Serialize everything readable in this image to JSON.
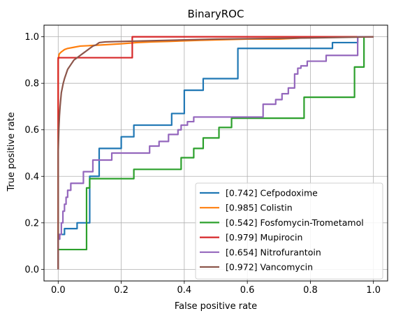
{
  "chart_data": {
    "type": "line",
    "title": "BinaryROC",
    "xlabel": "False positive rate",
    "ylabel": "True positive rate",
    "xlim": [
      -0.045,
      1.045
    ],
    "ylim": [
      -0.05,
      1.05
    ],
    "xticks": [
      0.0,
      0.2,
      0.4,
      0.6,
      0.8,
      1.0
    ],
    "yticks": [
      0.0,
      0.2,
      0.4,
      0.6,
      0.8,
      1.0
    ],
    "xtick_labels": [
      "0.0",
      "0.2",
      "0.4",
      "0.6",
      "0.8",
      "1.0"
    ],
    "ytick_labels": [
      "0.0",
      "0.2",
      "0.4",
      "0.6",
      "0.8",
      "1.0"
    ],
    "grid": true,
    "legend_position": "lower-right",
    "series": [
      {
        "name": "[0.742] Cefpodoxime",
        "color": "#1f77b4",
        "x": [
          0,
          0,
          0.02,
          0.02,
          0.06,
          0.06,
          0.1,
          0.1,
          0.13,
          0.13,
          0.2,
          0.2,
          0.24,
          0.24,
          0.36,
          0.36,
          0.4,
          0.4,
          0.46,
          0.46,
          0.57,
          0.57,
          0.87,
          0.87,
          0.95,
          0.95,
          1.0
        ],
        "y": [
          0,
          0.15,
          0.15,
          0.175,
          0.175,
          0.2,
          0.2,
          0.4,
          0.4,
          0.52,
          0.52,
          0.57,
          0.57,
          0.62,
          0.62,
          0.67,
          0.67,
          0.77,
          0.77,
          0.82,
          0.82,
          0.95,
          0.95,
          0.975,
          0.975,
          1.0,
          1.0
        ]
      },
      {
        "name": "[0.985] Colistin",
        "color": "#ff7f0e",
        "x": [
          0,
          0,
          0.003,
          0.006,
          0.01,
          0.015,
          0.02,
          0.03,
          0.05,
          0.07,
          0.1,
          0.14,
          0.2,
          0.25,
          0.3,
          0.35,
          0.45,
          0.6,
          0.7,
          0.85,
          1.0
        ],
        "y": [
          0,
          0.9,
          0.925,
          0.93,
          0.935,
          0.94,
          0.945,
          0.95,
          0.955,
          0.96,
          0.962,
          0.965,
          0.97,
          0.975,
          0.978,
          0.98,
          0.985,
          0.99,
          0.99,
          1.0,
          1.0
        ]
      },
      {
        "name": "[0.542] Fosfomycin-Trometamol",
        "color": "#2ca02c",
        "x": [
          0,
          0,
          0.09,
          0.09,
          0.1,
          0.1,
          0.12,
          0.12,
          0.24,
          0.24,
          0.39,
          0.39,
          0.43,
          0.43,
          0.46,
          0.46,
          0.51,
          0.51,
          0.55,
          0.55,
          0.78,
          0.78,
          0.94,
          0.94,
          0.97,
          0.97,
          1.0
        ],
        "y": [
          0,
          0.085,
          0.085,
          0.35,
          0.35,
          0.39,
          0.39,
          0.39,
          0.39,
          0.43,
          0.43,
          0.48,
          0.48,
          0.52,
          0.52,
          0.565,
          0.565,
          0.61,
          0.61,
          0.65,
          0.65,
          0.74,
          0.74,
          0.87,
          0.87,
          1.0,
          1.0
        ]
      },
      {
        "name": "[0.979] Mupirocin",
        "color": "#d62728",
        "x": [
          0,
          0,
          0.235,
          0.235,
          1.0
        ],
        "y": [
          0,
          0.91,
          0.91,
          1.0,
          1.0
        ]
      },
      {
        "name": "[0.654] Nitrofurantoin",
        "color": "#9467bd",
        "x": [
          0,
          0,
          0.005,
          0.005,
          0.01,
          0.01,
          0.015,
          0.015,
          0.02,
          0.02,
          0.025,
          0.025,
          0.03,
          0.03,
          0.04,
          0.04,
          0.05,
          0.05,
          0.08,
          0.08,
          0.11,
          0.11,
          0.17,
          0.17,
          0.29,
          0.29,
          0.32,
          0.32,
          0.35,
          0.35,
          0.38,
          0.38,
          0.39,
          0.39,
          0.41,
          0.41,
          0.43,
          0.43,
          0.47,
          0.47,
          0.65,
          0.65,
          0.69,
          0.69,
          0.71,
          0.71,
          0.73,
          0.73,
          0.75,
          0.75,
          0.76,
          0.76,
          0.77,
          0.77,
          0.79,
          0.79,
          0.85,
          0.85,
          0.95,
          0.95,
          1.0
        ],
        "y": [
          0,
          0.13,
          0.13,
          0.15,
          0.15,
          0.2,
          0.2,
          0.25,
          0.25,
          0.28,
          0.28,
          0.31,
          0.31,
          0.34,
          0.34,
          0.37,
          0.37,
          0.37,
          0.37,
          0.42,
          0.42,
          0.47,
          0.47,
          0.5,
          0.5,
          0.53,
          0.53,
          0.55,
          0.55,
          0.58,
          0.58,
          0.6,
          0.6,
          0.62,
          0.62,
          0.635,
          0.635,
          0.655,
          0.655,
          0.655,
          0.655,
          0.71,
          0.71,
          0.73,
          0.73,
          0.755,
          0.755,
          0.78,
          0.78,
          0.84,
          0.84,
          0.865,
          0.865,
          0.875,
          0.875,
          0.895,
          0.895,
          0.92,
          0.92,
          1.0,
          1.0
        ]
      },
      {
        "name": "[0.972] Vancomycin",
        "color": "#8c564b",
        "x": [
          0,
          0,
          0.002,
          0.004,
          0.006,
          0.008,
          0.01,
          0.013,
          0.016,
          0.02,
          0.025,
          0.03,
          0.035,
          0.04,
          0.05,
          0.06,
          0.07,
          0.08,
          0.09,
          0.1,
          0.11,
          0.12,
          0.13,
          0.15,
          0.2,
          0.5,
          0.8,
          1.0
        ],
        "y": [
          0,
          0.5,
          0.6,
          0.66,
          0.7,
          0.73,
          0.76,
          0.78,
          0.8,
          0.82,
          0.84,
          0.86,
          0.87,
          0.88,
          0.9,
          0.91,
          0.92,
          0.93,
          0.94,
          0.95,
          0.96,
          0.965,
          0.975,
          0.978,
          0.98,
          0.99,
          0.995,
          1.0
        ]
      }
    ]
  }
}
